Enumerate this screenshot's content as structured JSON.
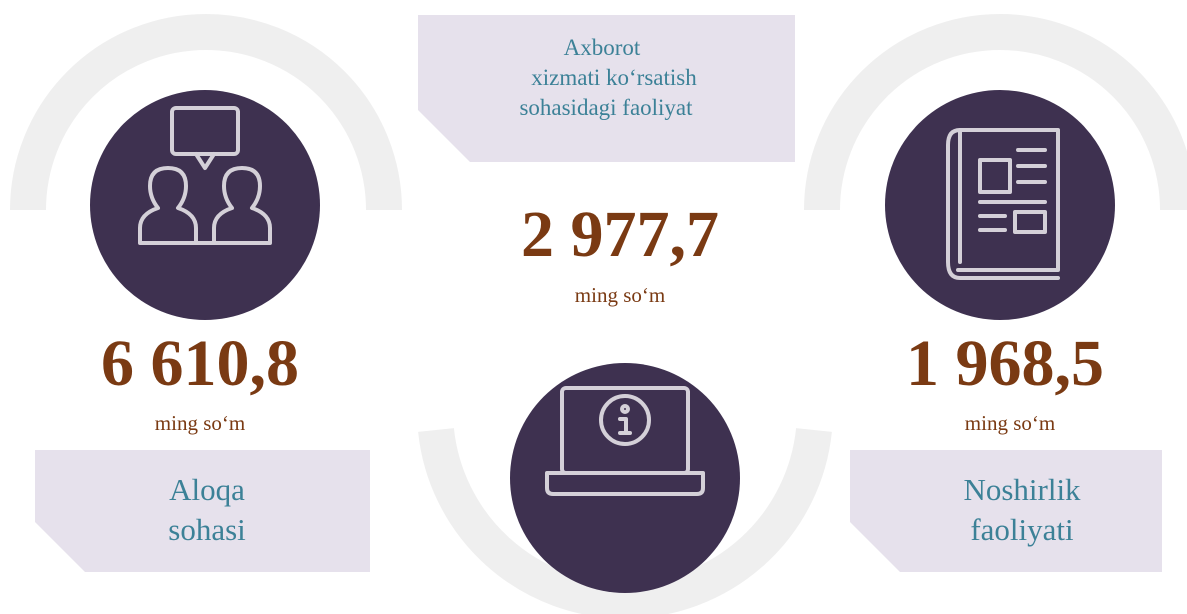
{
  "items": [
    {
      "value": "6 610,8",
      "unit": "ming so‘m",
      "label": [
        "Aloqa",
        "sohasi"
      ]
    },
    {
      "value": "2 977,7",
      "unit": "ming so‘m",
      "label": [
        "Axborot",
        "xizmati ko‘rsatish",
        "sohasidagi faoliyat"
      ]
    },
    {
      "value": "1 968,5",
      "unit": "ming so‘m",
      "label": [
        "Noshirlik",
        "faoliyati"
      ]
    }
  ]
}
